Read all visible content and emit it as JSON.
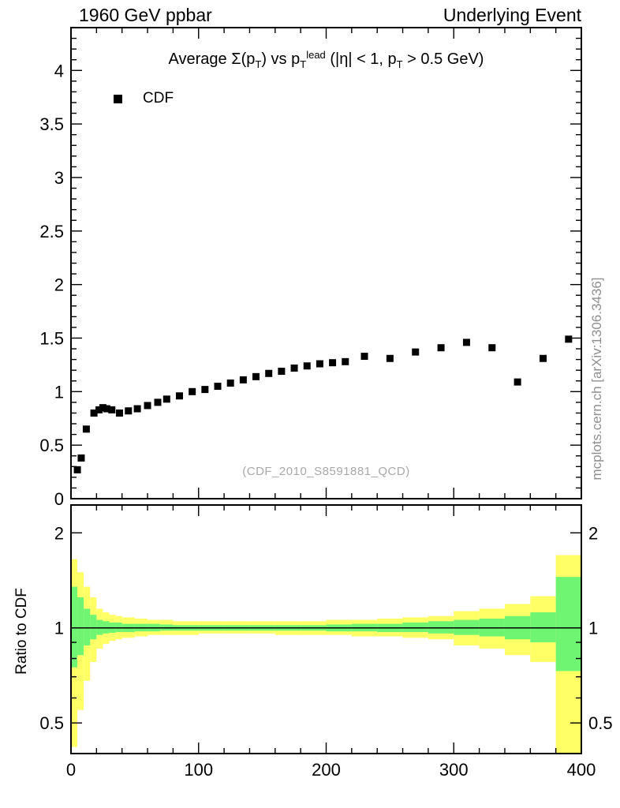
{
  "header": {
    "left": "1960 GeV ppbar",
    "right": "Underlying Event"
  },
  "side_watermark": "mcplots.cern.ch [arXiv:1306.3436]",
  "main_panel": {
    "title_segments": [
      {
        "text": "Average "
      },
      {
        "text": "Σ"
      },
      {
        "text": "(p"
      },
      {
        "text": "T",
        "style": "sub"
      },
      {
        "text": ") vs p"
      },
      {
        "text": "T",
        "style": "sub"
      },
      {
        "text": "lead",
        "style": "sup"
      },
      {
        "text": " (|η| < 1, p"
      },
      {
        "text": "T",
        "style": "sub"
      },
      {
        "text": " > 0.5 GeV)"
      }
    ],
    "legend": [
      {
        "label": "CDF",
        "marker": "square",
        "color": "#000000"
      }
    ],
    "ref_label": "(CDF_2010_S8591881_QCD)"
  },
  "ratio_panel": {
    "ylabel": "Ratio to CDF"
  },
  "chart_data": [
    {
      "type": "scatter",
      "title": "Average Sum(pT) vs pT^lead (|eta| < 1, pT > 0.5 GeV)",
      "xlabel": "",
      "ylabel": "",
      "xlim": [
        0,
        400
      ],
      "ylim": [
        0,
        4.4
      ],
      "xticks": [
        0,
        100,
        200,
        300,
        400
      ],
      "yticks": [
        0,
        0.5,
        1,
        1.5,
        2,
        2.5,
        3,
        3.5,
        4
      ],
      "grid": false,
      "legend_position": "top-left",
      "series": [
        {
          "name": "CDF",
          "marker": "square",
          "color": "#000000",
          "x": [
            5,
            8,
            12,
            18,
            22,
            25,
            28,
            32,
            38,
            45,
            52,
            60,
            68,
            75,
            85,
            95,
            105,
            115,
            125,
            135,
            145,
            155,
            165,
            175,
            185,
            195,
            205,
            215,
            230,
            250,
            270,
            290,
            310,
            330,
            350,
            370,
            390
          ],
          "y": [
            0.27,
            0.38,
            0.65,
            0.8,
            0.83,
            0.85,
            0.84,
            0.83,
            0.8,
            0.82,
            0.84,
            0.87,
            0.9,
            0.93,
            0.96,
            1.0,
            1.02,
            1.05,
            1.08,
            1.11,
            1.14,
            1.17,
            1.19,
            1.22,
            1.24,
            1.26,
            1.27,
            1.28,
            1.33,
            1.31,
            1.37,
            1.41,
            1.46,
            1.41,
            1.09,
            1.31,
            1.49
          ]
        }
      ]
    },
    {
      "type": "area",
      "ylabel": "Ratio to CDF",
      "yscale": "log",
      "xlim": [
        0,
        400
      ],
      "ylim": [
        0.4,
        2.45
      ],
      "yticks": [
        0.5,
        1,
        2
      ],
      "yticks_minor": [
        0.4,
        0.6,
        0.7,
        0.8,
        0.9
      ],
      "xticks": [
        0,
        100,
        200,
        300,
        400
      ],
      "reference_line_y": 1,
      "bin_edges": [
        0,
        5,
        10,
        15,
        20,
        25,
        30,
        35,
        40,
        50,
        60,
        70,
        80,
        100,
        120,
        140,
        160,
        180,
        200,
        220,
        240,
        260,
        280,
        300,
        320,
        340,
        360,
        380,
        400
      ],
      "bands": [
        {
          "name": "uncertainty-outer",
          "color": "#ffff66",
          "lo": [
            0.42,
            0.55,
            0.68,
            0.78,
            0.86,
            0.89,
            0.91,
            0.92,
            0.93,
            0.94,
            0.95,
            0.95,
            0.95,
            0.96,
            0.96,
            0.96,
            0.95,
            0.95,
            0.95,
            0.94,
            0.94,
            0.93,
            0.92,
            0.88,
            0.86,
            0.82,
            0.78,
            0.4
          ],
          "hi": [
            1.65,
            1.5,
            1.35,
            1.25,
            1.15,
            1.12,
            1.1,
            1.09,
            1.08,
            1.07,
            1.06,
            1.06,
            1.05,
            1.05,
            1.05,
            1.05,
            1.05,
            1.05,
            1.06,
            1.06,
            1.07,
            1.08,
            1.09,
            1.13,
            1.15,
            1.19,
            1.26,
            1.7
          ],
          "position": "outer"
        },
        {
          "name": "uncertainty-inner",
          "color": "#70f573",
          "lo": [
            0.75,
            0.82,
            0.88,
            0.92,
            0.95,
            0.96,
            0.965,
            0.97,
            0.97,
            0.975,
            0.975,
            0.98,
            0.98,
            0.98,
            0.98,
            0.98,
            0.98,
            0.98,
            0.975,
            0.975,
            0.97,
            0.97,
            0.96,
            0.95,
            0.94,
            0.92,
            0.9,
            0.73
          ],
          "hi": [
            1.35,
            1.25,
            1.15,
            1.1,
            1.06,
            1.05,
            1.04,
            1.04,
            1.03,
            1.03,
            1.03,
            1.025,
            1.02,
            1.02,
            1.02,
            1.02,
            1.02,
            1.02,
            1.025,
            1.03,
            1.03,
            1.04,
            1.05,
            1.06,
            1.07,
            1.09,
            1.12,
            1.45
          ],
          "position": "inner"
        }
      ]
    }
  ]
}
